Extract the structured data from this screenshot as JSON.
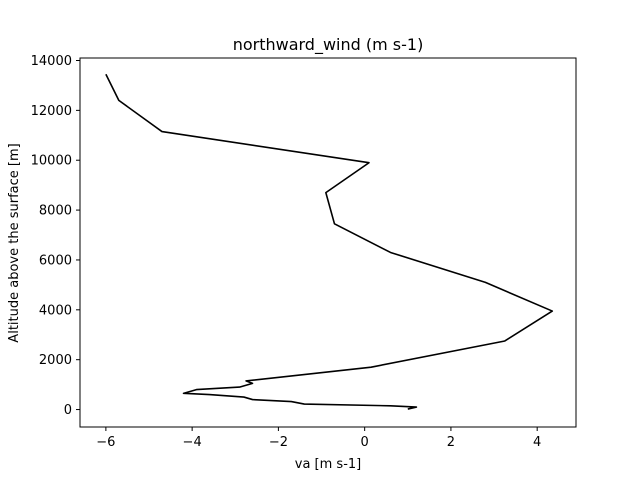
{
  "chart_data": {
    "type": "line",
    "title": "northward_wind (m s-1)",
    "xlabel": "va [m s-1]",
    "ylabel": "Altitude above the surface [m]",
    "xlim": [
      -6.6,
      4.9
    ],
    "ylim": [
      -700,
      14100
    ],
    "xticks": [
      -6,
      -4,
      -2,
      0,
      2,
      4
    ],
    "yticks": [
      0,
      2000,
      4000,
      6000,
      8000,
      10000,
      12000,
      14000
    ],
    "grid": false,
    "series": [
      {
        "color": "#000000",
        "points": [
          {
            "x": -6.0,
            "y": 13450
          },
          {
            "x": -5.7,
            "y": 12400
          },
          {
            "x": -4.7,
            "y": 11150
          },
          {
            "x": 0.1,
            "y": 9900
          },
          {
            "x": -0.9,
            "y": 8700
          },
          {
            "x": -0.7,
            "y": 7450
          },
          {
            "x": 0.6,
            "y": 6300
          },
          {
            "x": 2.8,
            "y": 5100
          },
          {
            "x": 4.35,
            "y": 3950
          },
          {
            "x": 3.25,
            "y": 2750
          },
          {
            "x": 0.15,
            "y": 1700
          },
          {
            "x": -2.75,
            "y": 1150
          },
          {
            "x": -2.6,
            "y": 1050
          },
          {
            "x": -2.9,
            "y": 900
          },
          {
            "x": -3.4,
            "y": 850
          },
          {
            "x": -3.9,
            "y": 800
          },
          {
            "x": -4.1,
            "y": 700
          },
          {
            "x": -4.2,
            "y": 650
          },
          {
            "x": -3.6,
            "y": 600
          },
          {
            "x": -2.8,
            "y": 500
          },
          {
            "x": -2.6,
            "y": 400
          },
          {
            "x": -1.7,
            "y": 320
          },
          {
            "x": -1.4,
            "y": 220
          },
          {
            "x": 0.6,
            "y": 150
          },
          {
            "x": 1.2,
            "y": 100
          },
          {
            "x": 1.0,
            "y": 20
          }
        ]
      }
    ]
  }
}
